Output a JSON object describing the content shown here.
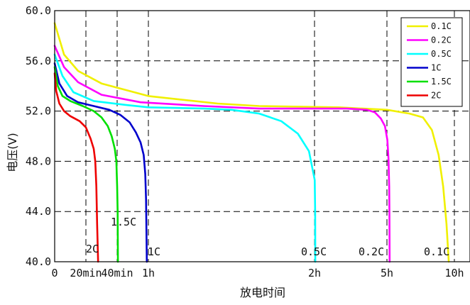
{
  "chart_data": {
    "type": "line",
    "title": "",
    "xlabel": "放电时间",
    "ylabel": "电压(V)",
    "ylim": [
      40,
      60
    ],
    "yticks": [
      {
        "value": 40,
        "label": "40.0"
      },
      {
        "value": 44,
        "label": "44.0"
      },
      {
        "value": 48,
        "label": "48.0"
      },
      {
        "value": 52,
        "label": "52.0"
      },
      {
        "value": 56,
        "label": "56.0"
      },
      {
        "value": 60,
        "label": "60.0"
      }
    ],
    "xticks": [
      {
        "value": 0,
        "label": "0"
      },
      {
        "value": 20,
        "label": "20min"
      },
      {
        "value": 40,
        "label": "40min"
      },
      {
        "value": 60,
        "label": "1h"
      },
      {
        "value": 120,
        "label": "2h"
      },
      {
        "value": 300,
        "label": "5h"
      },
      {
        "value": 600,
        "label": "10h"
      }
    ],
    "grid": "dashed",
    "legend_position": "top-right",
    "series": [
      {
        "name": "0.1C",
        "color": "#f0f000",
        "end_label": "0.1C",
        "points": [
          [
            0,
            59
          ],
          [
            6,
            56.5
          ],
          [
            15,
            55.2
          ],
          [
            30,
            54.2
          ],
          [
            60,
            53.2
          ],
          [
            85,
            52.6
          ],
          [
            100,
            52.4
          ],
          [
            180,
            52.3
          ],
          [
            240,
            52.2
          ],
          [
            300,
            52.1
          ],
          [
            400,
            51.8
          ],
          [
            460,
            51.5
          ],
          [
            500,
            50.5
          ],
          [
            530,
            48.5
          ],
          [
            550,
            46
          ],
          [
            565,
            43
          ],
          [
            575,
            40
          ]
        ]
      },
      {
        "name": "0.2C",
        "color": "#ff00ff",
        "end_label": "0.2C",
        "points": [
          [
            0,
            57.2
          ],
          [
            6,
            55.5
          ],
          [
            15,
            54.3
          ],
          [
            30,
            53.3
          ],
          [
            55,
            52.7
          ],
          [
            80,
            52.4
          ],
          [
            100,
            52.2
          ],
          [
            200,
            52.2
          ],
          [
            250,
            52.1
          ],
          [
            270,
            51.9
          ],
          [
            285,
            51.4
          ],
          [
            295,
            50.8
          ],
          [
            302,
            49.7
          ],
          [
            307,
            48.2
          ],
          [
            310,
            46
          ],
          [
            311,
            44
          ],
          [
            312,
            40
          ]
        ]
      },
      {
        "name": "0.5C",
        "color": "#00ffff",
        "end_label": "0.5C",
        "points": [
          [
            0,
            56.5
          ],
          [
            5,
            54.8
          ],
          [
            12,
            53.5
          ],
          [
            25,
            52.8
          ],
          [
            45,
            52.5
          ],
          [
            60,
            52.3
          ],
          [
            80,
            52.2
          ],
          [
            90,
            52.1
          ],
          [
            100,
            51.8
          ],
          [
            108,
            51.2
          ],
          [
            114,
            50.2
          ],
          [
            118,
            48.8
          ],
          [
            120.5,
            46.5
          ],
          [
            121.5,
            44
          ],
          [
            122,
            40
          ]
        ]
      },
      {
        "name": "1C",
        "color": "#0000cc",
        "end_label": "1C",
        "points": [
          [
            0,
            55.8
          ],
          [
            3,
            54.2
          ],
          [
            8,
            53.2
          ],
          [
            15,
            52.7
          ],
          [
            25,
            52.4
          ],
          [
            35,
            52.1
          ],
          [
            42,
            51.7
          ],
          [
            48,
            51.1
          ],
          [
            52,
            50.3
          ],
          [
            55,
            49.5
          ],
          [
            57,
            48.5
          ],
          [
            58,
            47
          ],
          [
            58.5,
            45
          ],
          [
            59,
            40
          ]
        ]
      },
      {
        "name": "1.5C",
        "color": "#00e000",
        "end_label": "1.5C",
        "points": [
          [
            0,
            55.5
          ],
          [
            2,
            54
          ],
          [
            5,
            53.2
          ],
          [
            10,
            52.8
          ],
          [
            18,
            52.4
          ],
          [
            25,
            52
          ],
          [
            30,
            51.5
          ],
          [
            34,
            50.8
          ],
          [
            36.5,
            50
          ],
          [
            38.5,
            49
          ],
          [
            39.5,
            48
          ],
          [
            40,
            46
          ],
          [
            40.3,
            44
          ],
          [
            40.5,
            40
          ]
        ]
      },
      {
        "name": "2C",
        "color": "#ee0000",
        "end_label": "2C",
        "points": [
          [
            0,
            55
          ],
          [
            1,
            53.6
          ],
          [
            3,
            52.6
          ],
          [
            6,
            52
          ],
          [
            10,
            51.6
          ],
          [
            16,
            51.2
          ],
          [
            20,
            50.7
          ],
          [
            23,
            49.8
          ],
          [
            25,
            49
          ],
          [
            26,
            48
          ],
          [
            26.7,
            46
          ],
          [
            27.2,
            43
          ],
          [
            27.8,
            40
          ]
        ]
      }
    ]
  }
}
